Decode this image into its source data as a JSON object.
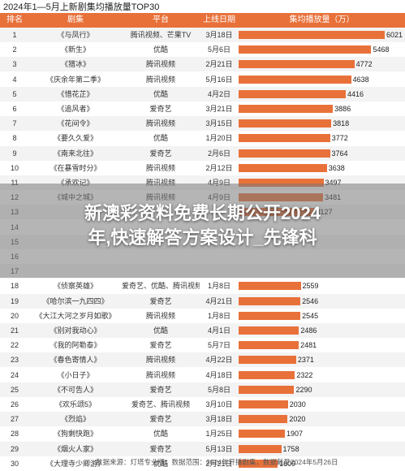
{
  "title": "2024年1—5月上新剧集均播放量TOP30",
  "header": {
    "rank": "排名",
    "name": "剧集",
    "platform": "平台",
    "date": "上线日期",
    "metric": "集均播放量（万）"
  },
  "chart_data": {
    "type": "bar",
    "title": "2024年1—5月上新剧集均播放量TOP30",
    "ylabel": "集均播放量（万）",
    "rows": [
      {
        "rank": "1",
        "name": "《与凤行》",
        "platform": "腾讯视频、芒果TV",
        "date": "3月18日",
        "value": 6021
      },
      {
        "rank": "2",
        "name": "《新生》",
        "platform": "优酷",
        "date": "5月6日",
        "value": 5468
      },
      {
        "rank": "3",
        "name": "《猎冰》",
        "platform": "腾讯视频",
        "date": "2月21日",
        "value": 4772
      },
      {
        "rank": "4",
        "name": "《庆余年第二季》",
        "platform": "腾讯视频",
        "date": "5月16日",
        "value": 4638
      },
      {
        "rank": "5",
        "name": "《惜花芷》",
        "platform": "优酷",
        "date": "4月2日",
        "value": 4416
      },
      {
        "rank": "6",
        "name": "《追风者》",
        "platform": "爱奇艺",
        "date": "3月21日",
        "value": 3886
      },
      {
        "rank": "7",
        "name": "《花间令》",
        "platform": "腾讯视频",
        "date": "3月15日",
        "value": 3818
      },
      {
        "rank": "8",
        "name": "《要久久爱》",
        "platform": "优酷",
        "date": "1月20日",
        "value": 3772
      },
      {
        "rank": "9",
        "name": "《南来北往》",
        "platform": "爱奇艺",
        "date": "2月6日",
        "value": 3764
      },
      {
        "rank": "10",
        "name": "《在暴雪时分》",
        "platform": "腾讯视频",
        "date": "2月12日",
        "value": 3638
      },
      {
        "rank": "11",
        "name": "《承欢记》",
        "platform": "腾讯视频",
        "date": "4月9日",
        "value": 3497
      },
      {
        "rank": "12",
        "name": "《城中之城》",
        "platform": "腾讯视频",
        "date": "4月9日",
        "value": 3481
      },
      {
        "rank": "13",
        "name": "",
        "platform": "",
        "date": "",
        "value": 3127
      },
      {
        "rank": "14",
        "name": "",
        "platform": "",
        "date": "",
        "value": null
      },
      {
        "rank": "15",
        "name": "",
        "platform": "",
        "date": "",
        "value": null
      },
      {
        "rank": "16",
        "name": "",
        "platform": "",
        "date": "",
        "value": null
      },
      {
        "rank": "17",
        "name": "",
        "platform": "",
        "date": "",
        "value": null
      },
      {
        "rank": "18",
        "name": "《侦察英雄》",
        "platform": "爱奇艺、优酷、腾讯视频",
        "date": "1月8日",
        "value": 2559
      },
      {
        "rank": "19",
        "name": "《哈尔滨一九四四》",
        "platform": "爱奇艺",
        "date": "4月21日",
        "value": 2546
      },
      {
        "rank": "20",
        "name": "《大江大河之岁月如歌》",
        "platform": "腾讯视频",
        "date": "1月8日",
        "value": 2545
      },
      {
        "rank": "21",
        "name": "《别对我动心》",
        "platform": "优酷",
        "date": "4月1日",
        "value": 2486
      },
      {
        "rank": "22",
        "name": "《我的阿勒泰》",
        "platform": "爱奇艺",
        "date": "5月7日",
        "value": 2481
      },
      {
        "rank": "23",
        "name": "《春色寄情人》",
        "platform": "腾讯视频",
        "date": "4月22日",
        "value": 2371
      },
      {
        "rank": "24",
        "name": "《小日子》",
        "platform": "腾讯视频",
        "date": "4月18日",
        "value": 2322
      },
      {
        "rank": "25",
        "name": "《不可告人》",
        "platform": "爱奇艺",
        "date": "5月8日",
        "value": 2290
      },
      {
        "rank": "26",
        "name": "《欢乐颂5》",
        "platform": "爱奇艺、腾讯视频",
        "date": "3月10日",
        "value": 2030
      },
      {
        "rank": "27",
        "name": "《烈焰》",
        "platform": "爱奇艺",
        "date": "3月18日",
        "value": 2020
      },
      {
        "rank": "28",
        "name": "《狗剩快跑》",
        "platform": "优酷",
        "date": "1月25日",
        "value": 1907
      },
      {
        "rank": "29",
        "name": "《烟火人家》",
        "platform": "爱奇艺",
        "date": "5月13日",
        "value": 1758
      },
      {
        "rank": "30",
        "name": "《大理寺少卿游》",
        "platform": "优酷",
        "date": "2月21日",
        "value": 1609
      }
    ]
  },
  "overlay": {
    "line1": "新澳彩资料免费长期公开2024",
    "line2": "年,快速解答方案设计_先锋科"
  },
  "footer": {
    "source": "数据来源：灯塔专业版；数据范围：2024年开播剧集，数据截至2024年5月26日"
  }
}
